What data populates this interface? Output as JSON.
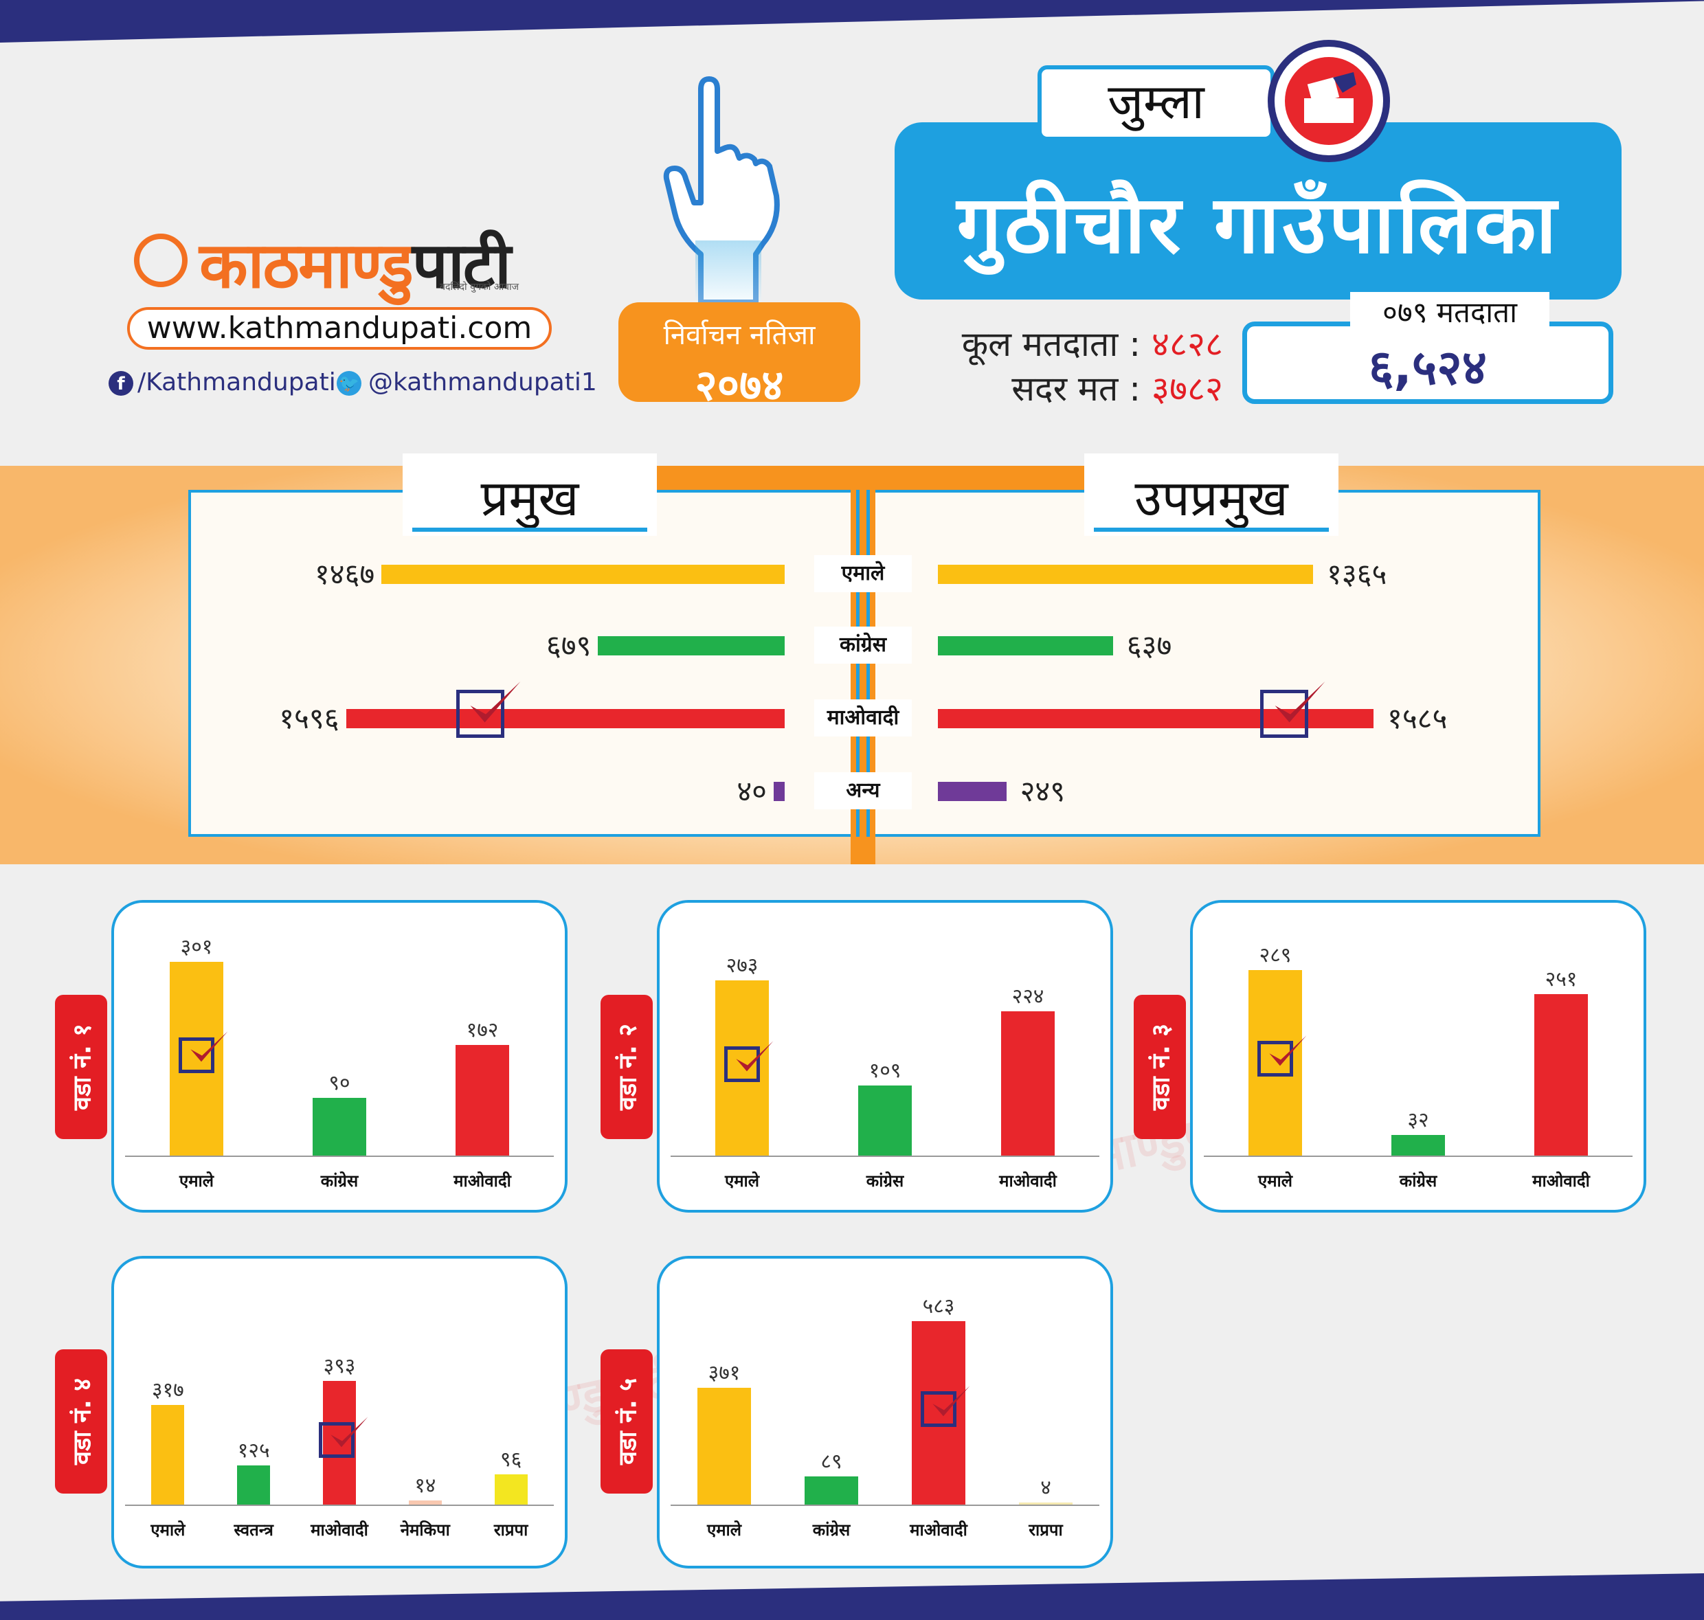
{
  "header": {
    "logo_orange": "काठमाण्डु",
    "logo_dark": "पाटी",
    "tagline": "बदलिंदो युगको आवाज",
    "url": "www.kathmandupati.com",
    "facebook": "/Kathmandupati",
    "twitter": "@kathmandupati1",
    "result_line1": "निर्वाचन नतिजा",
    "result_line2": "२०७४",
    "district": "जुम्ला",
    "municipality": "गुठीचौर  गाउँपालिका",
    "total_voters_label": "कूल मतदाता",
    "total_voters_value": "४८२८",
    "valid_votes_label": "सदर मत",
    "valid_votes_value": "३७८२",
    "voters_079_label": "०७९ मतदाता",
    "voters_079_value": "६,५२४",
    "colon": ":"
  },
  "watermark_text": "काठमाण्डुपाटी",
  "colors": {
    "uml": "#fbbf12",
    "congress": "#21b04b",
    "maoist": "#e8262c",
    "other": "#6f3a98",
    "independent": "#21b04b",
    "nemkipa": "#f8c8b0",
    "rpp": "#f3e620",
    "rpp_ward5": "#f5e9b0"
  },
  "chart_data": [
    {
      "type": "bar",
      "title": "प्रमुख",
      "categories": [
        "एमाले",
        "कांग्रेस",
        "माओवादी",
        "अन्य"
      ],
      "values": [
        1467,
        679,
        1596,
        40
      ],
      "value_labels": [
        "१४६७",
        "६७९",
        "१५९६",
        "४०"
      ],
      "winner": "माओवादी"
    },
    {
      "type": "bar",
      "title": "उपप्रमुख",
      "categories": [
        "एमाले",
        "कांग्रेस",
        "माओवादी",
        "अन्य"
      ],
      "values": [
        1365,
        637,
        1585,
        249
      ],
      "value_labels": [
        "१३६५",
        "६३७",
        "१५८५",
        "२४९"
      ],
      "winner": "माओवादी"
    },
    {
      "type": "bar",
      "ward": "वडा नं. १",
      "categories": [
        "एमाले",
        "कांग्रेस",
        "माओवादी"
      ],
      "values": [
        301,
        90,
        172
      ],
      "value_labels": [
        "३०१",
        "९०",
        "१७२"
      ],
      "winner": "एमाले"
    },
    {
      "type": "bar",
      "ward": "वडा नं. २",
      "categories": [
        "एमाले",
        "कांग्रेस",
        "माओवादी"
      ],
      "values": [
        273,
        109,
        224
      ],
      "value_labels": [
        "२७३",
        "१०९",
        "२२४"
      ],
      "winner": "एमाले"
    },
    {
      "type": "bar",
      "ward": "वडा नं. ३",
      "categories": [
        "एमाले",
        "कांग्रेस",
        "माओवादी"
      ],
      "values": [
        289,
        32,
        251
      ],
      "value_labels": [
        "२८९",
        "३२",
        "२५१"
      ],
      "winner": "एमाले"
    },
    {
      "type": "bar",
      "ward": "वडा नं. ४",
      "categories": [
        "एमाले",
        "स्वतन्त्र",
        "माओवादी",
        "नेमकिपा",
        "राप्रपा"
      ],
      "values": [
        317,
        125,
        393,
        14,
        96
      ],
      "value_labels": [
        "३१७",
        "१२५",
        "३९३",
        "१४",
        "९६"
      ],
      "winner": "माओवादी"
    },
    {
      "type": "bar",
      "ward": "वडा नं. ५",
      "categories": [
        "एमाले",
        "कांग्रेस",
        "माओवादी",
        "राप्रपा"
      ],
      "values": [
        371,
        89,
        583,
        4
      ],
      "value_labels": [
        "३७१",
        "८९",
        "५८३",
        "४"
      ],
      "winner": "माओवादी"
    }
  ]
}
